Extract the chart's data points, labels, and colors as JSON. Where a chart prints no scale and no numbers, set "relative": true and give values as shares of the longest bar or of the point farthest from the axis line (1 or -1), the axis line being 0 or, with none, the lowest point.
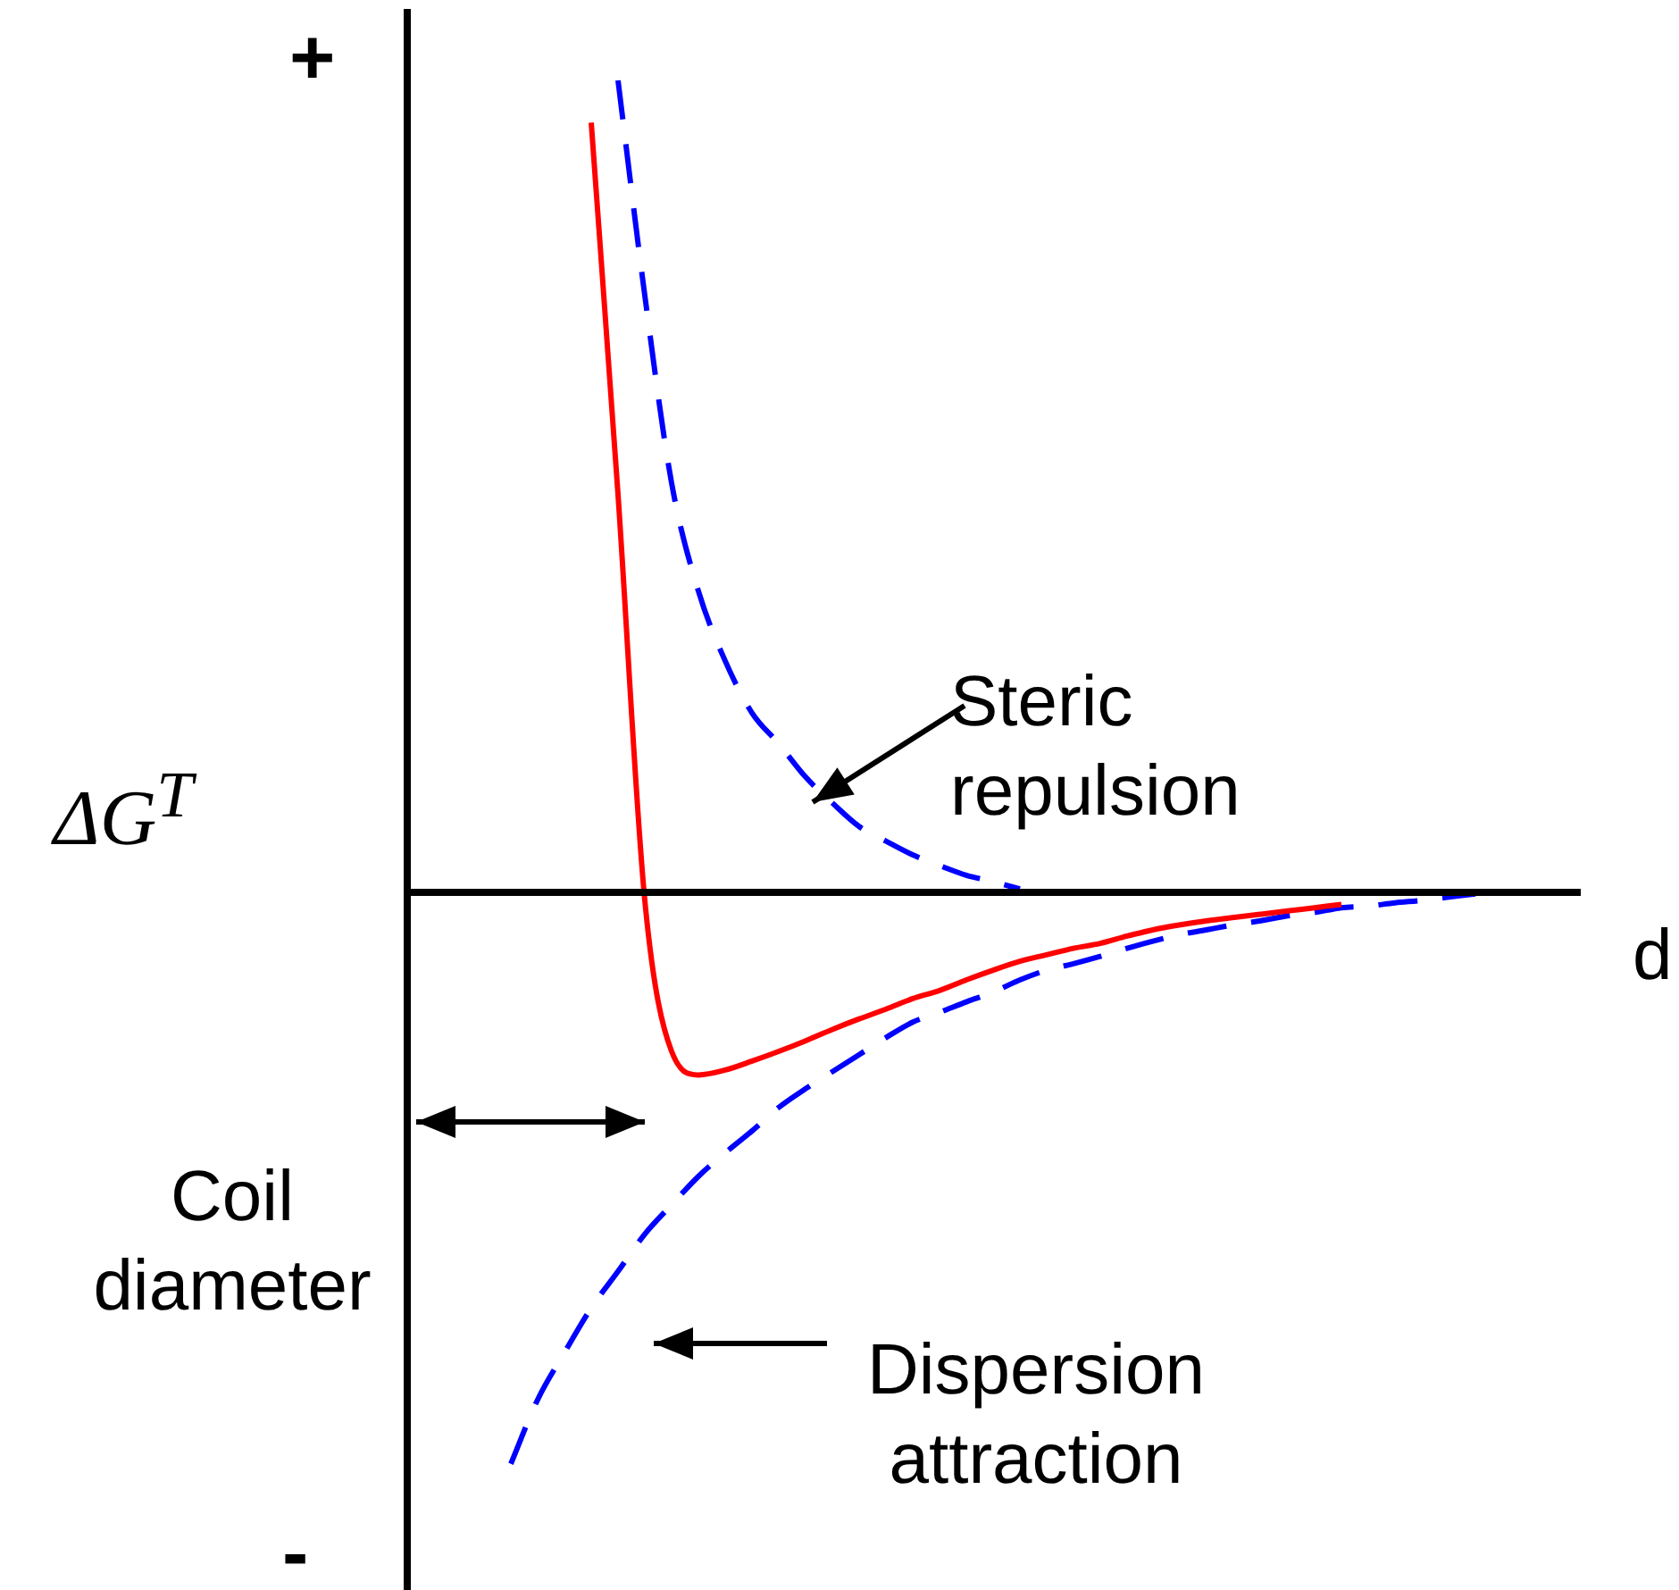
{
  "chart_data": {
    "type": "line",
    "relative": true,
    "xlabel": "d",
    "ylabel": "ΔG$^{T}$",
    "marker": "none",
    "annotations": [
      "+",
      "-",
      "Steric repulsion",
      "Dispersion attraction",
      "Coil diameter"
    ],
    "categories": [
      null,
      null,
      null,
      null,
      null,
      null,
      null,
      null,
      null,
      null,
      null,
      null,
      null,
      null,
      null,
      null,
      null,
      null,
      null,
      null,
      null,
      null,
      null,
      null,
      null,
      null,
      null,
      null,
      null,
      null,
      null,
      null,
      null,
      null,
      null,
      null,
      null,
      null,
      null,
      null,
      null,
      null,
      null,
      null
    ],
    "series": [
      {
        "color": "#ff0000",
        "line_style": "solid",
        "values": [
          null,
          null,
          null,
          null,
          null,
          null,
          null,
          0.948,
          0.49,
          -0.01,
          -0.196,
          -0.225,
          -0.219,
          -0.208,
          -0.196,
          -0.183,
          -0.169,
          -0.156,
          -0.144,
          -0.131,
          -0.121,
          -0.108,
          -0.096,
          -0.085,
          -0.077,
          -0.069,
          -0.063,
          -0.054,
          -0.046,
          -0.04,
          -0.035,
          -0.031,
          -0.027,
          -0.023,
          -0.019,
          -0.015,
          null,
          null,
          null,
          null,
          null,
          null,
          null,
          null
        ]
      },
      {
        "color": "#0000ff",
        "line_style": "dashed",
        "values": [
          null,
          null,
          null,
          null,
          null,
          null,
          null,
          null,
          1,
          0.735,
          0.504,
          0.371,
          0.285,
          0.221,
          0.183,
          0.142,
          0.11,
          0.081,
          0.063,
          0.046,
          0.033,
          0.021,
          0.013,
          0.004,
          null,
          null,
          null,
          null,
          null,
          null,
          null,
          null,
          null,
          null,
          null,
          null,
          null,
          null,
          null,
          null,
          null,
          null,
          null,
          null
        ]
      },
      {
        "color": "#0000ff",
        "line_style": "dashed",
        "values": [
          null,
          null,
          null,
          null,
          -0.704,
          -0.625,
          -0.567,
          -0.512,
          -0.467,
          -0.421,
          -0.385,
          -0.35,
          -0.321,
          -0.294,
          -0.265,
          -0.242,
          -0.221,
          -0.2,
          -0.179,
          -0.16,
          -0.148,
          -0.135,
          -0.123,
          -0.108,
          -0.096,
          -0.088,
          -0.079,
          -0.069,
          -0.06,
          -0.052,
          -0.046,
          -0.04,
          -0.035,
          -0.029,
          -0.025,
          -0.019,
          -0.017,
          -0.013,
          -0.01,
          -0.006,
          -0.002,
          null,
          null,
          null
        ]
      }
    ]
  }
}
